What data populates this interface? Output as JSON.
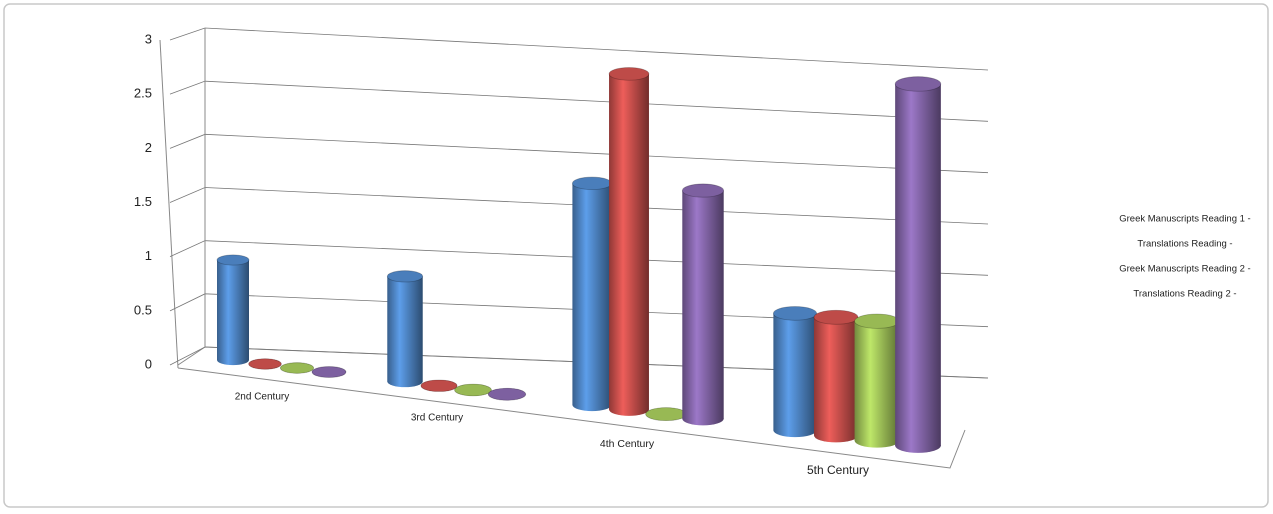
{
  "chart_data": {
    "type": "cylinder",
    "categories": [
      "2nd Century",
      "3rd Century",
      "4th Century",
      "5th Century"
    ],
    "series": [
      {
        "name": "Greek Manuscripts Reading 1 -",
        "color": "#4a7ebb",
        "values": [
          1,
          1,
          2,
          1
        ]
      },
      {
        "name": "Translations Reading -",
        "color": "#be4b48",
        "values": [
          0,
          0,
          3,
          1
        ]
      },
      {
        "name": "Greek Manuscripts Reading 2 -",
        "color": "#98b954",
        "values": [
          0,
          0,
          0,
          1
        ]
      },
      {
        "name": "Translations Reading 2 -",
        "color": "#7d60a0",
        "values": [
          0,
          0,
          2,
          3
        ]
      }
    ],
    "ylim": [
      0,
      3
    ],
    "yticks": [
      0,
      0.5,
      1,
      1.5,
      2,
      2.5,
      3
    ],
    "grid": true,
    "legend": "right"
  }
}
